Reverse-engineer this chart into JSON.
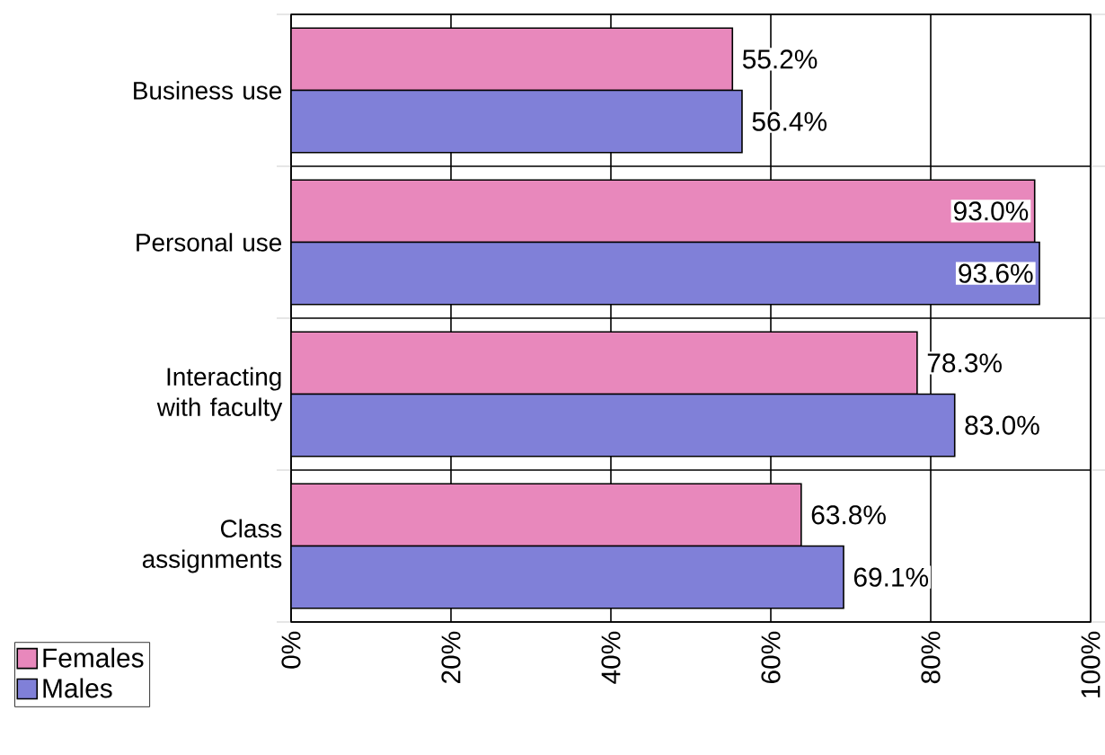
{
  "chart_data": {
    "type": "bar",
    "orientation": "horizontal",
    "categories": [
      "Business use",
      "Personal use",
      "Interacting with faculty",
      "Class assignments"
    ],
    "series": [
      {
        "name": "Females",
        "color": "#e888bc",
        "values": [
          55.2,
          93.0,
          78.3,
          63.8
        ],
        "value_labels": [
          "55.2%",
          "93.0%",
          "78.3%",
          "63.8%"
        ]
      },
      {
        "name": "Males",
        "color": "#8080d8",
        "values": [
          56.4,
          93.6,
          83.0,
          69.1
        ],
        "value_labels": [
          "56.4%",
          "93.6%",
          "83.0%",
          "69.1%"
        ]
      }
    ],
    "xlim": [
      0,
      100
    ],
    "xticks": [
      {
        "value": 0,
        "label": "0%"
      },
      {
        "value": 20,
        "label": "20%"
      },
      {
        "value": 40,
        "label": "40%"
      },
      {
        "value": 60,
        "label": "60%"
      },
      {
        "value": 80,
        "label": "80%"
      },
      {
        "value": 100,
        "label": "100%"
      }
    ],
    "grid": true,
    "legend": "bottom left"
  }
}
